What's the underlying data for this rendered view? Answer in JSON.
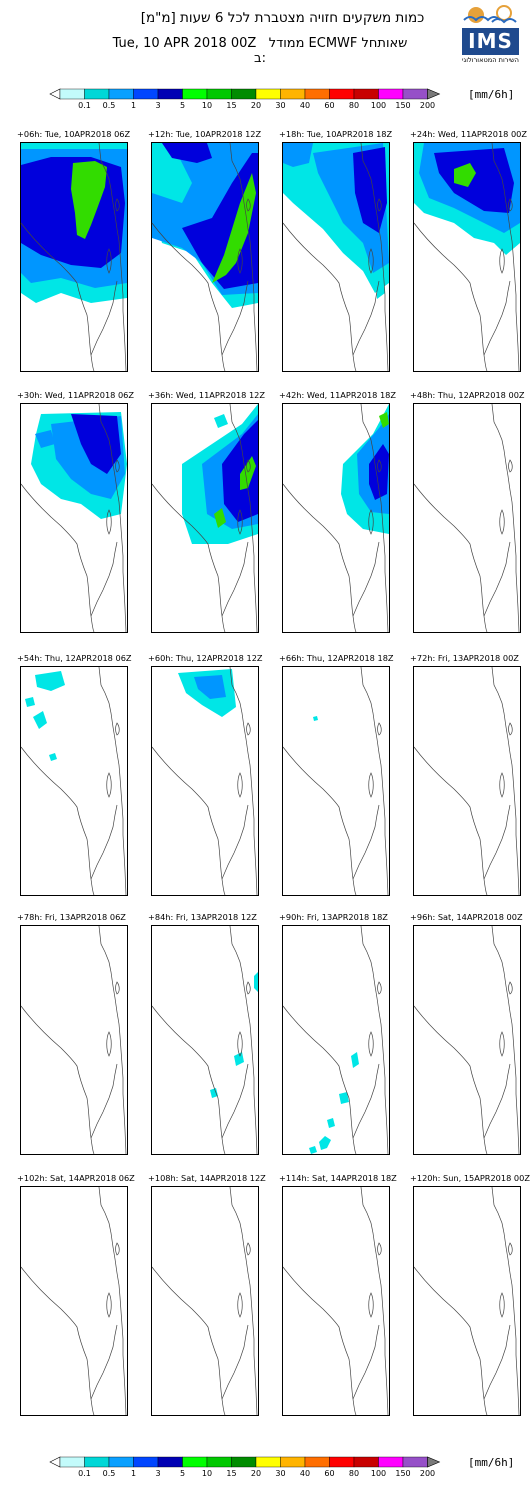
{
  "header": {
    "title_hebrew": "כמות משקעים חזויה מצטברת לכל 6 שעות [מ\"מ]",
    "model_line": "ממודל ECMWF שאותחל ב:",
    "init_time": "Tue, 10 APR 2018 00Z"
  },
  "logo": {
    "text": "IMS",
    "caption": "השירות המטאורולוגי"
  },
  "colorbar": {
    "labels": [
      "0.1",
      "0.5",
      "1",
      "3",
      "5",
      "10",
      "15",
      "20",
      "30",
      "40",
      "60",
      "80",
      "100",
      "150",
      "200"
    ],
    "colors": [
      "#c3fbfb",
      "#00d7d7",
      "#0aa0ff",
      "#0046ff",
      "#0000b4",
      "#00ff00",
      "#00c800",
      "#008c00",
      "#ffff00",
      "#ffb400",
      "#ff6e00",
      "#ff0000",
      "#c80000",
      "#ff00ff",
      "#9650c8",
      "#7a7a7a"
    ],
    "unit": "[mm/6h]"
  },
  "colors": {
    "light_cyan": "#00e6e6",
    "blue": "#0096ff",
    "dark_blue": "#0000dc",
    "green": "#32dc00",
    "coastline": "#444444"
  },
  "panels": [
    {
      "label": "+06h: Tue, 10APR2018 06Z",
      "rain": "p1"
    },
    {
      "label": "+12h: Tue, 10APR2018 12Z",
      "rain": "p2"
    },
    {
      "label": "+18h: Tue, 10APR2018 18Z",
      "rain": "p3"
    },
    {
      "label": "+24h: Wed, 11APR2018 00Z",
      "rain": "p4"
    },
    {
      "label": "+30h: Wed, 11APR2018 06Z",
      "rain": "p5"
    },
    {
      "label": "+36h: Wed, 11APR2018 12Z",
      "rain": "p6"
    },
    {
      "label": "+42h: Wed, 11APR2018 18Z",
      "rain": "p7"
    },
    {
      "label": "+48h: Thu, 12APR2018 00Z",
      "rain": ""
    },
    {
      "label": "+54h: Thu, 12APR2018 06Z",
      "rain": "p9"
    },
    {
      "label": "+60h: Thu, 12APR2018 12Z",
      "rain": "p10"
    },
    {
      "label": "+66h: Thu, 12APR2018 18Z",
      "rain": "p11"
    },
    {
      "label": "+72h: Fri, 13APR2018 00Z",
      "rain": ""
    },
    {
      "label": "+78h: Fri, 13APR2018 06Z",
      "rain": ""
    },
    {
      "label": "+84h: Fri, 13APR2018 12Z",
      "rain": "p14"
    },
    {
      "label": "+90h: Fri, 13APR2018 18Z",
      "rain": "p15"
    },
    {
      "label": "+96h: Sat, 14APR2018 00Z",
      "rain": ""
    },
    {
      "label": "+102h: Sat, 14APR2018 06Z",
      "rain": ""
    },
    {
      "label": "+108h: Sat, 14APR2018 12Z",
      "rain": ""
    },
    {
      "label": "+114h: Sat, 14APR2018 18Z",
      "rain": ""
    },
    {
      "label": "+120h: Sun, 15APR2018 00Z",
      "rain": ""
    }
  ]
}
